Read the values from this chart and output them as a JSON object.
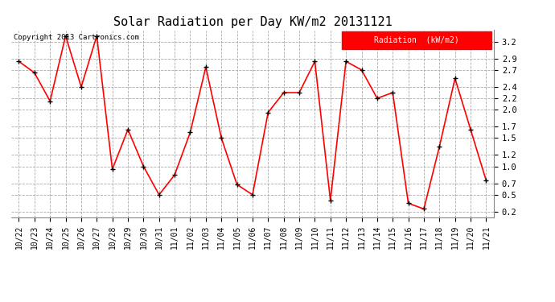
{
  "title": "Solar Radiation per Day KW/m2 20131121",
  "copyright_text": "Copyright 2013 Cartronics.com",
  "legend_label": "Radiation  (kW/m2)",
  "dates": [
    "10/22",
    "10/23",
    "10/24",
    "10/25",
    "10/26",
    "10/27",
    "10/28",
    "10/29",
    "10/30",
    "10/31",
    "11/01",
    "11/02",
    "11/03",
    "11/04",
    "11/05",
    "11/06",
    "11/07",
    "11/08",
    "11/09",
    "11/10",
    "11/11",
    "11/12",
    "11/13",
    "11/14",
    "11/15",
    "11/16",
    "11/17",
    "11/18",
    "11/19",
    "11/20",
    "11/21"
  ],
  "values": [
    2.85,
    2.65,
    2.15,
    3.3,
    2.4,
    3.3,
    0.95,
    1.65,
    1.0,
    0.5,
    0.85,
    1.6,
    2.75,
    1.5,
    0.68,
    0.5,
    1.95,
    2.3,
    2.3,
    2.85,
    0.4,
    2.85,
    2.7,
    2.2,
    2.3,
    0.35,
    0.25,
    1.35,
    2.55,
    1.65,
    0.75
  ],
  "ylim": [
    0.1,
    3.4
  ],
  "yticks": [
    0.2,
    0.5,
    0.7,
    1.0,
    1.2,
    1.5,
    1.7,
    2.0,
    2.2,
    2.4,
    2.7,
    2.9,
    3.2
  ],
  "line_color": "#ff0000",
  "marker_color": "#000000",
  "bg_color": "#ffffff",
  "grid_color": "#aaaaaa",
  "title_fontsize": 11,
  "tick_fontsize": 7,
  "copyright_fontsize": 6.5,
  "legend_bg_color": "#ff0000",
  "legend_text_color": "#ffffff",
  "legend_fontsize": 7
}
